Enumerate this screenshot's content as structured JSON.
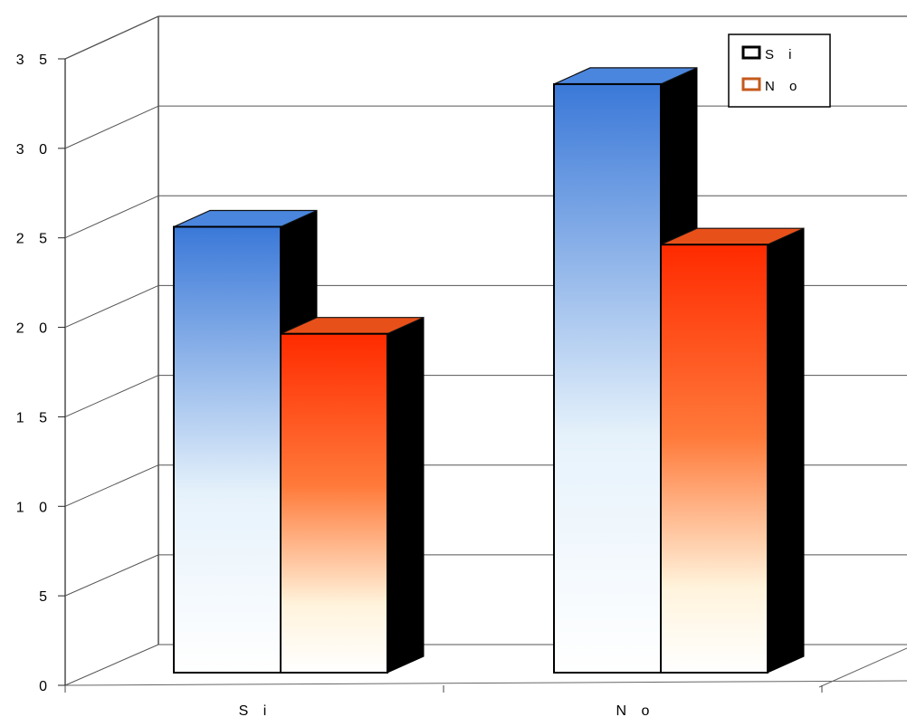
{
  "chart_data": {
    "type": "bar",
    "title": "",
    "xlabel": "",
    "ylabel": "",
    "categories": [
      "S i",
      "N o"
    ],
    "series": [
      {
        "name": "S i",
        "values": [
          25,
          33
        ],
        "color_top": "#3a78d8",
        "color_bottom": "#ffffff"
      },
      {
        "name": "N o",
        "values": [
          19,
          24
        ],
        "color_top": "#ff2a00",
        "color_bottom": "#ffffff"
      }
    ],
    "ylim": [
      0,
      35
    ],
    "yticks": [
      "0",
      "5",
      "1 0",
      "1 5",
      "2 0",
      "2 5",
      "3 0",
      "3 5"
    ],
    "grid": true,
    "legend_placement": "top-right",
    "style": "3d"
  },
  "legend": {
    "items": [
      {
        "label": "S i",
        "swatch_color": "#000000"
      },
      {
        "label": "N o",
        "swatch_color": "#c45a1c"
      }
    ]
  }
}
